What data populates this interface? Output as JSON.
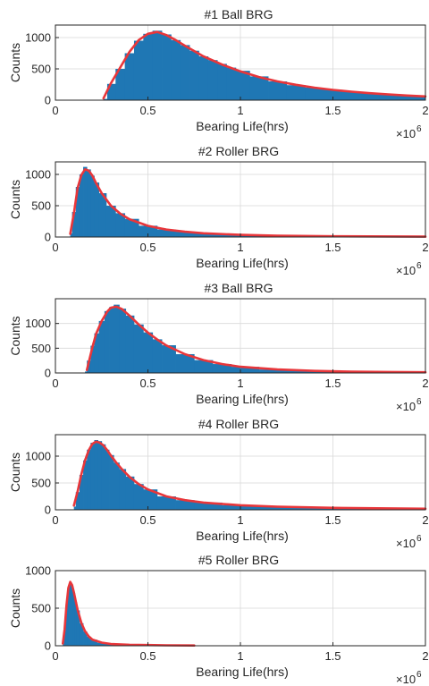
{
  "colors": {
    "bars": "#1f77b4",
    "fit": "#e8363a",
    "axis": "#262626",
    "grid": "#d9d9d9"
  },
  "chart_data": [
    {
      "type": "bar",
      "title": "#1 Ball BRG",
      "xlabel": "Bearing Life(hrs)",
      "ylabel": "Counts",
      "x_exponent_label": "×10",
      "x_exponent": "6",
      "xlim": [
        0,
        2
      ],
      "ylim": [
        0,
        1200
      ],
      "xticks": [
        0,
        0.5,
        1,
        1.5,
        2
      ],
      "xtick_labels": [
        "0",
        "0.5",
        "1",
        "1.5",
        "2"
      ],
      "yticks": [
        0,
        500,
        1000
      ],
      "ytick_labels": [
        "0",
        "500",
        "1000"
      ],
      "grid": true,
      "series": [
        {
          "kind": "histogram",
          "x": [
            0.26,
            0.3,
            0.35,
            0.4,
            0.45,
            0.5,
            0.55,
            0.6,
            0.65,
            0.7,
            0.75,
            0.8,
            0.85,
            0.9,
            0.95,
            1.0,
            1.1,
            1.2,
            1.3,
            1.4,
            1.5,
            1.6,
            1.7,
            1.8,
            1.9,
            2.0
          ],
          "y": [
            20,
            260,
            500,
            750,
            950,
            1060,
            1110,
            1050,
            960,
            880,
            790,
            700,
            640,
            580,
            520,
            470,
            380,
            300,
            240,
            200,
            165,
            135,
            115,
            95,
            80,
            65
          ]
        },
        {
          "kind": "fit",
          "x": [
            0.26,
            0.3,
            0.35,
            0.4,
            0.45,
            0.5,
            0.55,
            0.6,
            0.65,
            0.7,
            0.8,
            0.9,
            1.0,
            1.1,
            1.2,
            1.3,
            1.4,
            1.5,
            1.6,
            1.7,
            1.8,
            1.9,
            2.0
          ],
          "y": [
            30,
            270,
            520,
            770,
            960,
            1060,
            1090,
            1040,
            960,
            870,
            700,
            570,
            460,
            370,
            300,
            245,
            200,
            165,
            135,
            112,
            92,
            75,
            60
          ]
        }
      ]
    },
    {
      "type": "bar",
      "title": "#2 Roller BRG",
      "xlabel": "Bearing Life(hrs)",
      "ylabel": "Counts",
      "x_exponent_label": "×10",
      "x_exponent": "6",
      "xlim": [
        0,
        2
      ],
      "ylim": [
        0,
        1200
      ],
      "xticks": [
        0,
        0.5,
        1,
        1.5,
        2
      ],
      "xtick_labels": [
        "0",
        "0.5",
        "1",
        "1.5",
        "2"
      ],
      "yticks": [
        0,
        500,
        1000
      ],
      "ytick_labels": [
        "0",
        "500",
        "1000"
      ],
      "grid": true,
      "series": [
        {
          "kind": "histogram",
          "x": [
            0.08,
            0.1,
            0.12,
            0.14,
            0.16,
            0.18,
            0.2,
            0.22,
            0.25,
            0.3,
            0.35,
            0.4,
            0.5,
            0.6,
            0.7,
            0.8,
            1.0,
            1.2,
            1.5,
            2.0
          ],
          "y": [
            60,
            400,
            800,
            1000,
            1120,
            1080,
            980,
            870,
            700,
            500,
            380,
            290,
            180,
            120,
            85,
            60,
            35,
            22,
            12,
            5
          ]
        },
        {
          "kind": "fit",
          "x": [
            0.08,
            0.1,
            0.12,
            0.14,
            0.16,
            0.18,
            0.2,
            0.22,
            0.25,
            0.3,
            0.35,
            0.4,
            0.5,
            0.6,
            0.7,
            0.8,
            1.0,
            1.2,
            1.5,
            2.0
          ],
          "y": [
            50,
            380,
            780,
            990,
            1080,
            1060,
            980,
            860,
            700,
            500,
            375,
            285,
            178,
            118,
            84,
            60,
            35,
            22,
            12,
            5
          ]
        }
      ]
    },
    {
      "type": "bar",
      "title": "#3 Ball BRG",
      "xlabel": "Bearing Life(hrs)",
      "ylabel": "Counts",
      "x_exponent_label": "×10",
      "x_exponent": "6",
      "xlim": [
        0,
        2
      ],
      "ylim": [
        0,
        1500
      ],
      "xticks": [
        0,
        0.5,
        1,
        1.5,
        2
      ],
      "xtick_labels": [
        "0",
        "0.5",
        "1",
        "1.5",
        "2"
      ],
      "yticks": [
        0,
        500,
        1000
      ],
      "ytick_labels": [
        "0",
        "500",
        "1000"
      ],
      "grid": true,
      "series": [
        {
          "kind": "histogram",
          "x": [
            0.16,
            0.18,
            0.2,
            0.22,
            0.25,
            0.28,
            0.3,
            0.33,
            0.36,
            0.4,
            0.45,
            0.5,
            0.55,
            0.6,
            0.7,
            0.8,
            0.9,
            1.0,
            1.2,
            1.4,
            1.6,
            1.8,
            2.0
          ],
          "y": [
            30,
            250,
            550,
            800,
            1050,
            1250,
            1330,
            1380,
            1300,
            1160,
            980,
            820,
            680,
            560,
            380,
            260,
            180,
            125,
            70,
            42,
            28,
            20,
            14
          ]
        },
        {
          "kind": "fit",
          "x": [
            0.17,
            0.2,
            0.22,
            0.25,
            0.28,
            0.3,
            0.33,
            0.36,
            0.4,
            0.45,
            0.5,
            0.55,
            0.6,
            0.7,
            0.8,
            0.9,
            1.0,
            1.2,
            1.4,
            1.6,
            1.8,
            2.0
          ],
          "y": [
            60,
            520,
            790,
            1050,
            1240,
            1320,
            1340,
            1290,
            1160,
            980,
            815,
            675,
            555,
            380,
            260,
            180,
            125,
            70,
            42,
            28,
            20,
            14
          ]
        }
      ]
    },
    {
      "type": "bar",
      "title": "#4 Roller BRG",
      "xlabel": "Bearing Life(hrs)",
      "ylabel": "Counts",
      "x_exponent_label": "×10",
      "x_exponent": "6",
      "xlim": [
        0,
        2
      ],
      "ylim": [
        0,
        1400
      ],
      "xticks": [
        0,
        0.5,
        1,
        1.5,
        2
      ],
      "xtick_labels": [
        "0",
        "0.5",
        "1",
        "1.5",
        "2"
      ],
      "yticks": [
        0,
        500,
        1000
      ],
      "ytick_labels": [
        "0",
        "500",
        "1000"
      ],
      "grid": true,
      "series": [
        {
          "kind": "histogram",
          "x": [
            0.1,
            0.12,
            0.14,
            0.16,
            0.18,
            0.2,
            0.22,
            0.24,
            0.26,
            0.28,
            0.3,
            0.33,
            0.36,
            0.4,
            0.45,
            0.5,
            0.6,
            0.7,
            0.8,
            1.0,
            1.2,
            1.5,
            2.0
          ],
          "y": [
            60,
            330,
            650,
            920,
            1120,
            1250,
            1300,
            1280,
            1220,
            1120,
            1020,
            880,
            760,
            620,
            480,
            380,
            250,
            180,
            135,
            85,
            58,
            36,
            20
          ]
        },
        {
          "kind": "fit",
          "x": [
            0.1,
            0.12,
            0.14,
            0.16,
            0.18,
            0.2,
            0.22,
            0.24,
            0.26,
            0.28,
            0.3,
            0.33,
            0.36,
            0.4,
            0.45,
            0.5,
            0.6,
            0.7,
            0.8,
            1.0,
            1.2,
            1.5,
            2.0
          ],
          "y": [
            80,
            340,
            660,
            920,
            1110,
            1230,
            1270,
            1250,
            1200,
            1110,
            1010,
            875,
            755,
            615,
            478,
            380,
            250,
            180,
            135,
            85,
            58,
            36,
            20
          ]
        }
      ]
    },
    {
      "type": "bar",
      "title": "#5 Roller BRG",
      "xlabel": "Bearing Life(hrs)",
      "ylabel": "Counts",
      "x_exponent_label": "×10",
      "x_exponent": "6",
      "xlim": [
        0,
        2
      ],
      "ylim": [
        0,
        1000
      ],
      "xticks": [
        0,
        0.5,
        1,
        1.5,
        2
      ],
      "xtick_labels": [
        "0",
        "0.5",
        "1",
        "1.5",
        "2"
      ],
      "yticks": [
        0,
        500,
        1000
      ],
      "ytick_labels": [
        "0",
        "500",
        "1000"
      ],
      "grid": true,
      "series": [
        {
          "kind": "histogram",
          "x": [
            0.04,
            0.05,
            0.06,
            0.07,
            0.08,
            0.09,
            0.1,
            0.11,
            0.12,
            0.14,
            0.16,
            0.18,
            0.2,
            0.25,
            0.3,
            0.4,
            0.5,
            0.6,
            0.75
          ],
          "y": [
            20,
            200,
            520,
            760,
            840,
            800,
            700,
            580,
            470,
            300,
            190,
            120,
            80,
            40,
            22,
            12,
            8,
            5,
            3
          ]
        },
        {
          "kind": "fit",
          "x": [
            0.04,
            0.05,
            0.06,
            0.07,
            0.08,
            0.09,
            0.1,
            0.11,
            0.12,
            0.14,
            0.16,
            0.18,
            0.2,
            0.25,
            0.3,
            0.4,
            0.5,
            0.6,
            0.75
          ],
          "y": [
            30,
            220,
            540,
            770,
            850,
            810,
            710,
            590,
            480,
            305,
            195,
            125,
            82,
            42,
            24,
            13,
            9,
            6,
            4
          ]
        }
      ]
    }
  ]
}
